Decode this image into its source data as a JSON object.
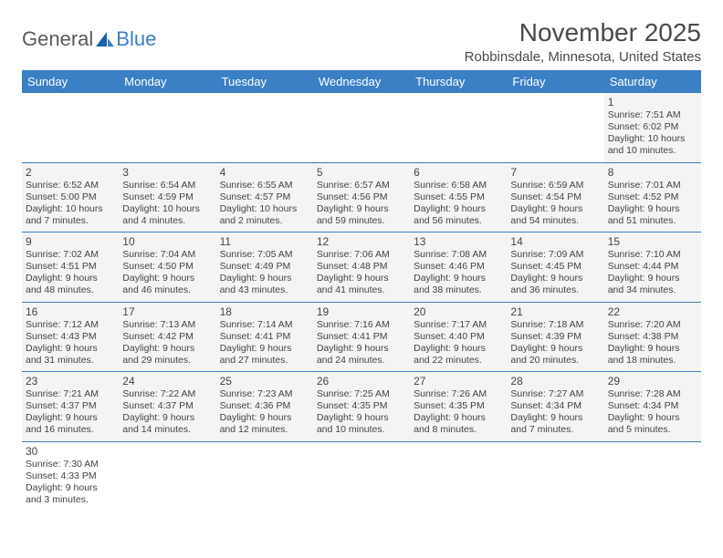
{
  "logo": {
    "text1": "General",
    "text2": "Blue"
  },
  "title": "November 2025",
  "location": "Robbinsdale, Minnesota, United States",
  "header_bg": "#3b7fc4",
  "cell_bg": "#f4f4f4",
  "weekdays": [
    "Sunday",
    "Monday",
    "Tuesday",
    "Wednesday",
    "Thursday",
    "Friday",
    "Saturday"
  ],
  "weeks": [
    [
      null,
      null,
      null,
      null,
      null,
      null,
      {
        "d": "1",
        "sr": "Sunrise: 7:51 AM",
        "ss": "Sunset: 6:02 PM",
        "dl": "Daylight: 10 hours and 10 minutes."
      }
    ],
    [
      {
        "d": "2",
        "sr": "Sunrise: 6:52 AM",
        "ss": "Sunset: 5:00 PM",
        "dl": "Daylight: 10 hours and 7 minutes."
      },
      {
        "d": "3",
        "sr": "Sunrise: 6:54 AM",
        "ss": "Sunset: 4:59 PM",
        "dl": "Daylight: 10 hours and 4 minutes."
      },
      {
        "d": "4",
        "sr": "Sunrise: 6:55 AM",
        "ss": "Sunset: 4:57 PM",
        "dl": "Daylight: 10 hours and 2 minutes."
      },
      {
        "d": "5",
        "sr": "Sunrise: 6:57 AM",
        "ss": "Sunset: 4:56 PM",
        "dl": "Daylight: 9 hours and 59 minutes."
      },
      {
        "d": "6",
        "sr": "Sunrise: 6:58 AM",
        "ss": "Sunset: 4:55 PM",
        "dl": "Daylight: 9 hours and 56 minutes."
      },
      {
        "d": "7",
        "sr": "Sunrise: 6:59 AM",
        "ss": "Sunset: 4:54 PM",
        "dl": "Daylight: 9 hours and 54 minutes."
      },
      {
        "d": "8",
        "sr": "Sunrise: 7:01 AM",
        "ss": "Sunset: 4:52 PM",
        "dl": "Daylight: 9 hours and 51 minutes."
      }
    ],
    [
      {
        "d": "9",
        "sr": "Sunrise: 7:02 AM",
        "ss": "Sunset: 4:51 PM",
        "dl": "Daylight: 9 hours and 48 minutes."
      },
      {
        "d": "10",
        "sr": "Sunrise: 7:04 AM",
        "ss": "Sunset: 4:50 PM",
        "dl": "Daylight: 9 hours and 46 minutes."
      },
      {
        "d": "11",
        "sr": "Sunrise: 7:05 AM",
        "ss": "Sunset: 4:49 PM",
        "dl": "Daylight: 9 hours and 43 minutes."
      },
      {
        "d": "12",
        "sr": "Sunrise: 7:06 AM",
        "ss": "Sunset: 4:48 PM",
        "dl": "Daylight: 9 hours and 41 minutes."
      },
      {
        "d": "13",
        "sr": "Sunrise: 7:08 AM",
        "ss": "Sunset: 4:46 PM",
        "dl": "Daylight: 9 hours and 38 minutes."
      },
      {
        "d": "14",
        "sr": "Sunrise: 7:09 AM",
        "ss": "Sunset: 4:45 PM",
        "dl": "Daylight: 9 hours and 36 minutes."
      },
      {
        "d": "15",
        "sr": "Sunrise: 7:10 AM",
        "ss": "Sunset: 4:44 PM",
        "dl": "Daylight: 9 hours and 34 minutes."
      }
    ],
    [
      {
        "d": "16",
        "sr": "Sunrise: 7:12 AM",
        "ss": "Sunset: 4:43 PM",
        "dl": "Daylight: 9 hours and 31 minutes."
      },
      {
        "d": "17",
        "sr": "Sunrise: 7:13 AM",
        "ss": "Sunset: 4:42 PM",
        "dl": "Daylight: 9 hours and 29 minutes."
      },
      {
        "d": "18",
        "sr": "Sunrise: 7:14 AM",
        "ss": "Sunset: 4:41 PM",
        "dl": "Daylight: 9 hours and 27 minutes."
      },
      {
        "d": "19",
        "sr": "Sunrise: 7:16 AM",
        "ss": "Sunset: 4:41 PM",
        "dl": "Daylight: 9 hours and 24 minutes."
      },
      {
        "d": "20",
        "sr": "Sunrise: 7:17 AM",
        "ss": "Sunset: 4:40 PM",
        "dl": "Daylight: 9 hours and 22 minutes."
      },
      {
        "d": "21",
        "sr": "Sunrise: 7:18 AM",
        "ss": "Sunset: 4:39 PM",
        "dl": "Daylight: 9 hours and 20 minutes."
      },
      {
        "d": "22",
        "sr": "Sunrise: 7:20 AM",
        "ss": "Sunset: 4:38 PM",
        "dl": "Daylight: 9 hours and 18 minutes."
      }
    ],
    [
      {
        "d": "23",
        "sr": "Sunrise: 7:21 AM",
        "ss": "Sunset: 4:37 PM",
        "dl": "Daylight: 9 hours and 16 minutes."
      },
      {
        "d": "24",
        "sr": "Sunrise: 7:22 AM",
        "ss": "Sunset: 4:37 PM",
        "dl": "Daylight: 9 hours and 14 minutes."
      },
      {
        "d": "25",
        "sr": "Sunrise: 7:23 AM",
        "ss": "Sunset: 4:36 PM",
        "dl": "Daylight: 9 hours and 12 minutes."
      },
      {
        "d": "26",
        "sr": "Sunrise: 7:25 AM",
        "ss": "Sunset: 4:35 PM",
        "dl": "Daylight: 9 hours and 10 minutes."
      },
      {
        "d": "27",
        "sr": "Sunrise: 7:26 AM",
        "ss": "Sunset: 4:35 PM",
        "dl": "Daylight: 9 hours and 8 minutes."
      },
      {
        "d": "28",
        "sr": "Sunrise: 7:27 AM",
        "ss": "Sunset: 4:34 PM",
        "dl": "Daylight: 9 hours and 7 minutes."
      },
      {
        "d": "29",
        "sr": "Sunrise: 7:28 AM",
        "ss": "Sunset: 4:34 PM",
        "dl": "Daylight: 9 hours and 5 minutes."
      }
    ],
    [
      {
        "d": "30",
        "sr": "Sunrise: 7:30 AM",
        "ss": "Sunset: 4:33 PM",
        "dl": "Daylight: 9 hours and 3 minutes."
      },
      null,
      null,
      null,
      null,
      null,
      null
    ]
  ]
}
